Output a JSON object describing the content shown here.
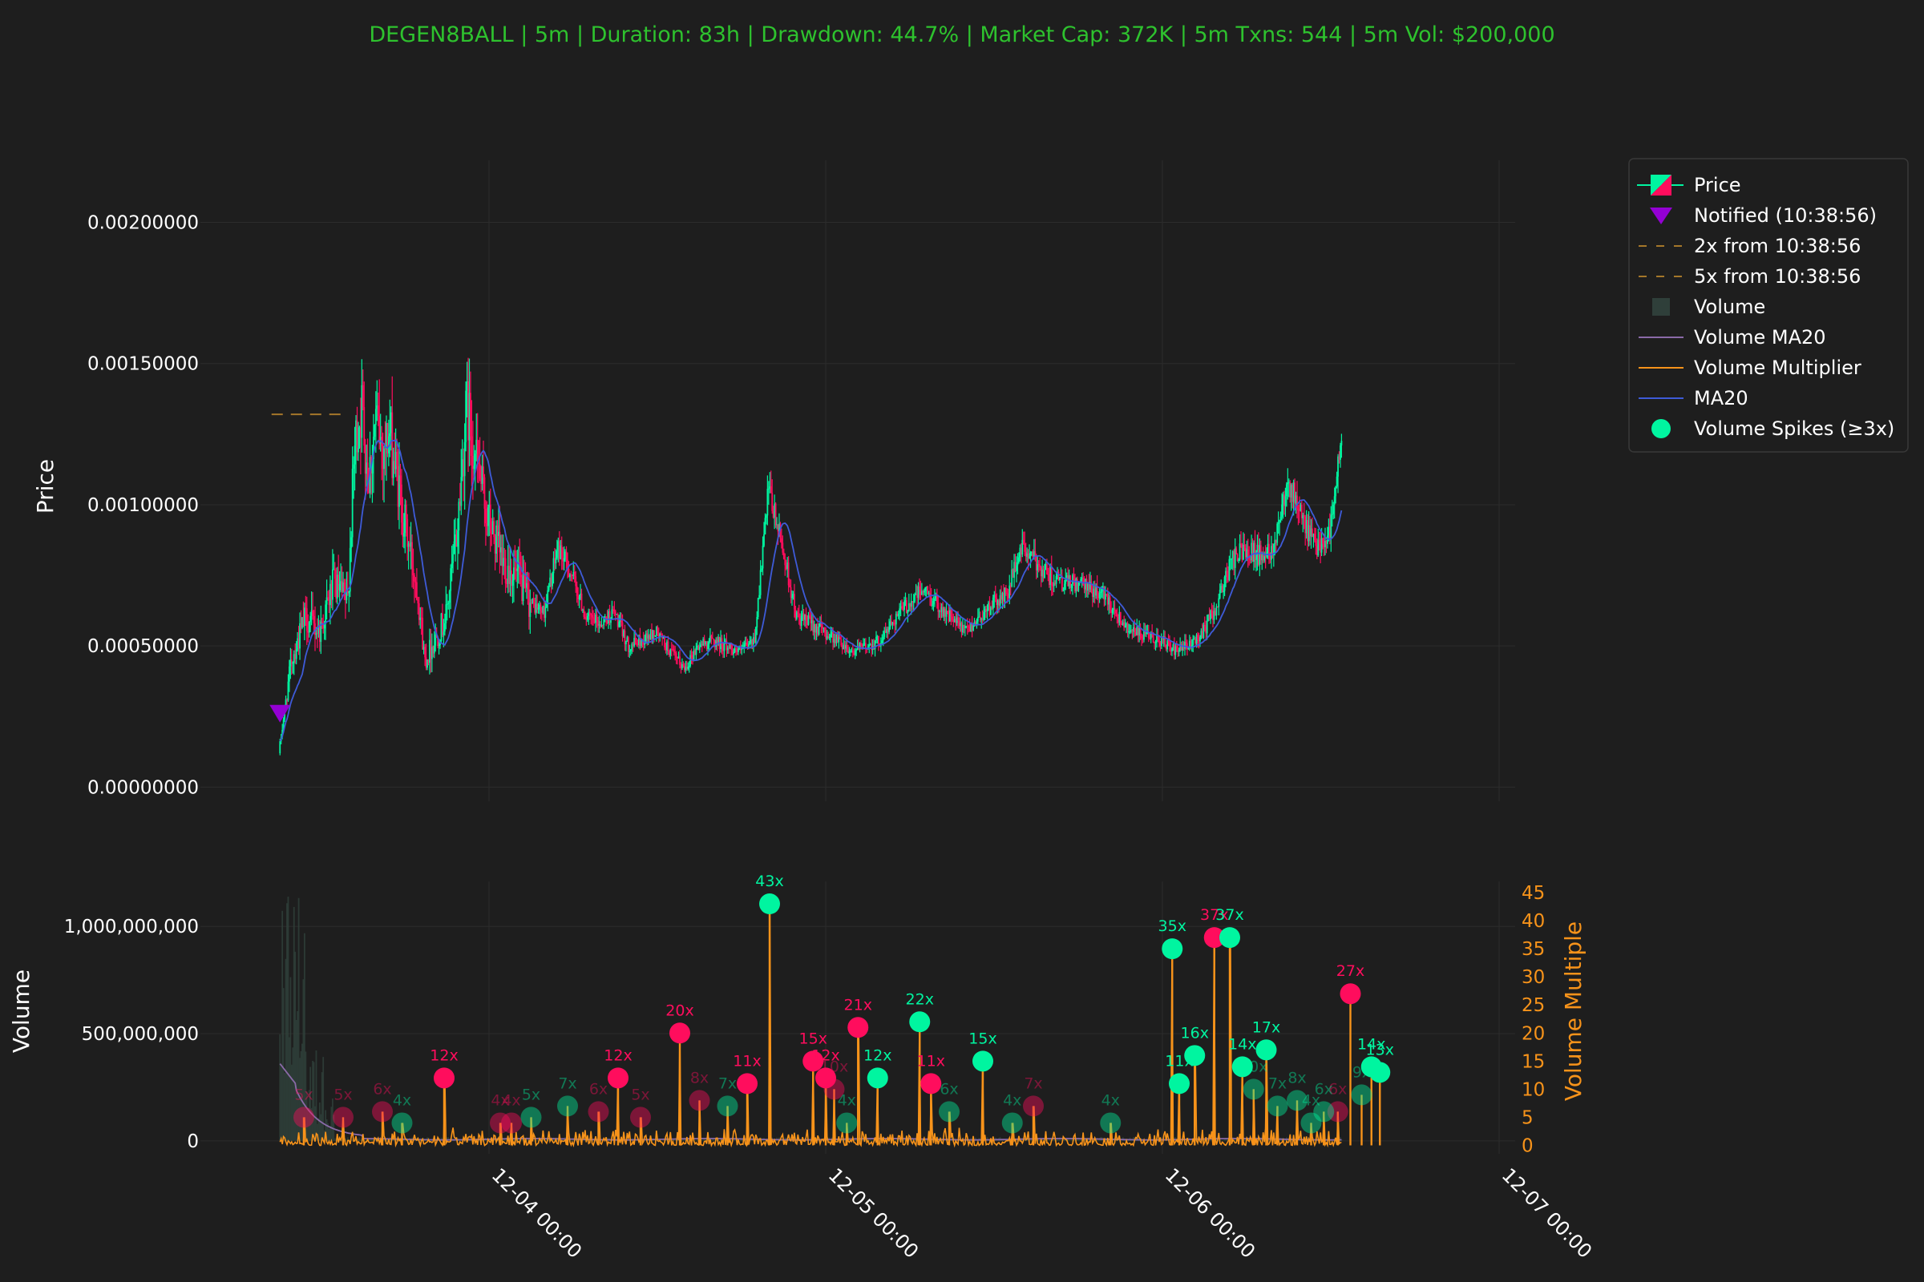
{
  "title": "DEGEN8BALL | 5m | Duration: 83h | Drawdown: 44.7% | Market Cap: 372K | 5m Txns: 544 | 5m Vol: $200,000",
  "colors": {
    "background": "#1e1e1e",
    "title": "#2ec22e",
    "up": "#00f5a0",
    "down": "#ff0d5d",
    "ma20": "#3e5bd8",
    "volume_ma20": "#8a6aa8",
    "volume_multiplier": "#f7931a",
    "notified": "#9400d3",
    "dashed_level": "#a5772a",
    "grid": "#2c2c2c"
  },
  "price_axis": {
    "label": "Price",
    "ticks": [
      "0.00000000",
      "0.00050000",
      "0.00100000",
      "0.00150000",
      "0.00200000"
    ],
    "tick_values": [
      0,
      0.0005,
      0.001,
      0.0015,
      0.002
    ],
    "ylim": [
      -5e-05,
      0.00222
    ]
  },
  "volume_axis": {
    "label": "Volume",
    "ticks": [
      "0",
      "500,000,000",
      "1,000,000,000"
    ],
    "tick_values": [
      0,
      500000000,
      1000000000
    ],
    "ylim": [
      -60000000,
      1210000000
    ]
  },
  "multiplier_axis": {
    "label": "Volume Multiple",
    "ticks": [
      "0",
      "5",
      "10",
      "15",
      "20",
      "25",
      "30",
      "35",
      "40",
      "45"
    ],
    "tick_values": [
      0,
      5,
      10,
      15,
      20,
      25,
      30,
      35,
      40,
      45
    ],
    "ylim": [
      -1.5,
      47
    ]
  },
  "x_axis": {
    "ticks": [
      "12-04 00:00",
      "12-05 00:00",
      "12-06 00:00",
      "12-07 00:00"
    ],
    "tick_hours": [
      0,
      24,
      48,
      72
    ]
  },
  "legend": {
    "items": [
      {
        "label": "Price",
        "icon": "candle-icon"
      },
      {
        "label": "Notified (10:38:56)",
        "icon": "triangle-down-icon"
      },
      {
        "label": "2x from 10:38:56",
        "icon": "dashed-line-icon"
      },
      {
        "label": "5x from 10:38:56",
        "icon": "dashed-line-icon"
      },
      {
        "label": "Volume",
        "icon": "square-icon"
      },
      {
        "label": "Volume MA20",
        "icon": "line-icon"
      },
      {
        "label": "Volume Multiplier",
        "icon": "line-icon"
      },
      {
        "label": "MA20",
        "icon": "line-icon"
      },
      {
        "label": "Volume Spikes (≥3x)",
        "icon": "circle-icon"
      }
    ]
  },
  "chart_data": {
    "type": "candlestick",
    "interval": "5m",
    "x_unit": "hours relative to 12-04 00:00",
    "notified": {
      "x": -14.9,
      "price": 0.00026
    },
    "dashed_level": {
      "price": 0.00132,
      "x_range": [
        -15.5,
        -10.3
      ]
    },
    "price_path": [
      [
        -14.9,
        0.00012
      ],
      [
        -14.0,
        0.00045
      ],
      [
        -13.0,
        0.0006
      ],
      [
        -12.0,
        0.00055
      ],
      [
        -11.0,
        0.00072
      ],
      [
        -10.0,
        0.00065
      ],
      [
        -9.5,
        0.0012
      ],
      [
        -9.0,
        0.00135
      ],
      [
        -8.5,
        0.0011
      ],
      [
        -8.0,
        0.0013
      ],
      [
        -7.5,
        0.0012
      ],
      [
        -7.0,
        0.00125
      ],
      [
        -6.0,
        0.00095
      ],
      [
        -5.0,
        0.0007
      ],
      [
        -4.5,
        0.00045
      ],
      [
        -4.0,
        0.0005
      ],
      [
        -3.0,
        0.0006
      ],
      [
        -2.2,
        0.0009
      ],
      [
        -1.5,
        0.00135
      ],
      [
        -0.8,
        0.00115
      ],
      [
        0,
        0.00095
      ],
      [
        1,
        0.0008
      ],
      [
        2,
        0.00075
      ],
      [
        3,
        0.00065
      ],
      [
        4,
        0.00062
      ],
      [
        5,
        0.00085
      ],
      [
        6,
        0.00075
      ],
      [
        7,
        0.0006
      ],
      [
        8,
        0.00058
      ],
      [
        9,
        0.00062
      ],
      [
        10,
        0.0005
      ],
      [
        11,
        0.00052
      ],
      [
        12,
        0.00055
      ],
      [
        13,
        0.00048
      ],
      [
        14,
        0.00042
      ],
      [
        15,
        0.0005
      ],
      [
        16,
        0.00052
      ],
      [
        17,
        0.0005
      ],
      [
        18,
        0.00048
      ],
      [
        19,
        0.00052
      ],
      [
        20,
        0.00105
      ],
      [
        21,
        0.00085
      ],
      [
        22,
        0.0006
      ],
      [
        23,
        0.00058
      ],
      [
        24,
        0.00055
      ],
      [
        25,
        0.00052
      ],
      [
        26,
        0.00048
      ],
      [
        27,
        0.0005
      ],
      [
        28,
        0.00052
      ],
      [
        29,
        0.0006
      ],
      [
        30,
        0.00065
      ],
      [
        31,
        0.0007
      ],
      [
        32,
        0.00065
      ],
      [
        33,
        0.0006
      ],
      [
        34,
        0.00055
      ],
      [
        35,
        0.0006
      ],
      [
        36,
        0.00065
      ],
      [
        37,
        0.00068
      ],
      [
        38,
        0.00085
      ],
      [
        39,
        0.0008
      ],
      [
        40,
        0.00075
      ],
      [
        41,
        0.00072
      ],
      [
        42,
        0.00072
      ],
      [
        43,
        0.0007
      ],
      [
        44,
        0.00068
      ],
      [
        45,
        0.0006
      ],
      [
        46,
        0.00055
      ],
      [
        47,
        0.00053
      ],
      [
        48,
        0.00052
      ],
      [
        49,
        0.00048
      ],
      [
        50,
        0.0005
      ],
      [
        51,
        0.00055
      ],
      [
        52,
        0.00065
      ],
      [
        53,
        0.0008
      ],
      [
        54,
        0.00085
      ],
      [
        55,
        0.00082
      ],
      [
        56,
        0.00085
      ],
      [
        57,
        0.0011
      ],
      [
        58,
        0.00095
      ],
      [
        59,
        0.00085
      ],
      [
        60,
        0.0009
      ],
      [
        60.8,
        0.0012
      ]
    ],
    "spikes": [
      {
        "x": 20.0,
        "multiple": 43,
        "label": "43x",
        "color": "up",
        "strong": true
      },
      {
        "x": -3.2,
        "multiple": 12,
        "label": "12x",
        "color": "down",
        "strong": true
      },
      {
        "x": -7.6,
        "multiple": 6,
        "label": "6x",
        "color": "down",
        "strong": false
      },
      {
        "x": -13.2,
        "multiple": 5,
        "label": "5x",
        "color": "down",
        "strong": false
      },
      {
        "x": 5.6,
        "multiple": 7,
        "label": "7x",
        "color": "up",
        "strong": false
      },
      {
        "x": 3.0,
        "multiple": 5,
        "label": "5x",
        "color": "up",
        "strong": false
      },
      {
        "x": 13.6,
        "multiple": 20,
        "label": "20x",
        "color": "down",
        "strong": true
      },
      {
        "x": 9.2,
        "multiple": 12,
        "label": "12x",
        "color": "down",
        "strong": true
      },
      {
        "x": 18.4,
        "multiple": 11,
        "label": "11x",
        "color": "down",
        "strong": true
      },
      {
        "x": 15.0,
        "multiple": 8,
        "label": "8x",
        "color": "down",
        "strong": false
      },
      {
        "x": 17.0,
        "multiple": 7,
        "label": "7x",
        "color": "up",
        "strong": false
      },
      {
        "x": 23.1,
        "multiple": 15,
        "label": "15x",
        "color": "down",
        "strong": true
      },
      {
        "x": 24.0,
        "multiple": 12,
        "label": "12x",
        "color": "down",
        "strong": true
      },
      {
        "x": 24.6,
        "multiple": 10,
        "label": "10x",
        "color": "down",
        "strong": false
      },
      {
        "x": 25.5,
        "multiple": 4,
        "label": "4x",
        "color": "up",
        "strong": false
      },
      {
        "x": 26.3,
        "multiple": 21,
        "label": "21x",
        "color": "down",
        "strong": true
      },
      {
        "x": 30.7,
        "multiple": 22,
        "label": "22x",
        "color": "up",
        "strong": true
      },
      {
        "x": 27.7,
        "multiple": 12,
        "label": "12x",
        "color": "up",
        "strong": true
      },
      {
        "x": 31.5,
        "multiple": 11,
        "label": "11x",
        "color": "down",
        "strong": true
      },
      {
        "x": 32.8,
        "multiple": 6,
        "label": "6x",
        "color": "up",
        "strong": false
      },
      {
        "x": 35.2,
        "multiple": 15,
        "label": "15x",
        "color": "up",
        "strong": true
      },
      {
        "x": 37.3,
        "multiple": 4,
        "label": "4x",
        "color": "up",
        "strong": false
      },
      {
        "x": 38.8,
        "multiple": 7,
        "label": "7x",
        "color": "down",
        "strong": false
      },
      {
        "x": 44.3,
        "multiple": 4,
        "label": "4x",
        "color": "up",
        "strong": false
      },
      {
        "x": 48.7,
        "multiple": 35,
        "label": "35x",
        "color": "up",
        "strong": true
      },
      {
        "x": 49.2,
        "multiple": 11,
        "label": "11x",
        "color": "up",
        "strong": true
      },
      {
        "x": 50.3,
        "multiple": 16,
        "label": "16x",
        "color": "up",
        "strong": true
      },
      {
        "x": 51.7,
        "multiple": 37,
        "label": "37x",
        "color": "down",
        "strong": true
      },
      {
        "x": 52.8,
        "multiple": 37,
        "label": "37x",
        "color": "up",
        "strong": true
      },
      {
        "x": 53.7,
        "multiple": 14,
        "label": "14x",
        "color": "up",
        "strong": true
      },
      {
        "x": 54.5,
        "multiple": 10,
        "label": "10x",
        "color": "up",
        "strong": false
      },
      {
        "x": 55.4,
        "multiple": 17,
        "label": "17x",
        "color": "up",
        "strong": true
      },
      {
        "x": 56.2,
        "multiple": 7,
        "label": "7x",
        "color": "up",
        "strong": false
      },
      {
        "x": 57.6,
        "multiple": 8,
        "label": "8x",
        "color": "up",
        "strong": false
      },
      {
        "x": 60.5,
        "multiple": 6,
        "label": "6x",
        "color": "down",
        "strong": false
      },
      {
        "x": 61.4,
        "multiple": 27,
        "label": "27x",
        "color": "down",
        "strong": true
      },
      {
        "x": 62.2,
        "multiple": 9,
        "label": "9x",
        "color": "up",
        "strong": false
      },
      {
        "x": 62.9,
        "multiple": 14,
        "label": "14x",
        "color": "up",
        "strong": true
      },
      {
        "x": 63.5,
        "multiple": 13,
        "label": "13x",
        "color": "up",
        "strong": true
      },
      {
        "x": 59.5,
        "multiple": 6,
        "label": "6x",
        "color": "up",
        "strong": false
      },
      {
        "x": 58.6,
        "multiple": 4,
        "label": "4x",
        "color": "up",
        "strong": false
      },
      {
        "x": 7.8,
        "multiple": 6,
        "label": "6x",
        "color": "down",
        "strong": false
      },
      {
        "x": 10.8,
        "multiple": 5,
        "label": "5x",
        "color": "down",
        "strong": false
      },
      {
        "x": 1.6,
        "multiple": 4,
        "label": "4x",
        "color": "down",
        "strong": false
      },
      {
        "x": 0.8,
        "multiple": 4,
        "label": "4x",
        "color": "down",
        "strong": false
      },
      {
        "x": -10.4,
        "multiple": 5,
        "label": "5x",
        "color": "down",
        "strong": false
      },
      {
        "x": -6.2,
        "multiple": 4,
        "label": "4x",
        "color": "up",
        "strong": false
      }
    ]
  }
}
